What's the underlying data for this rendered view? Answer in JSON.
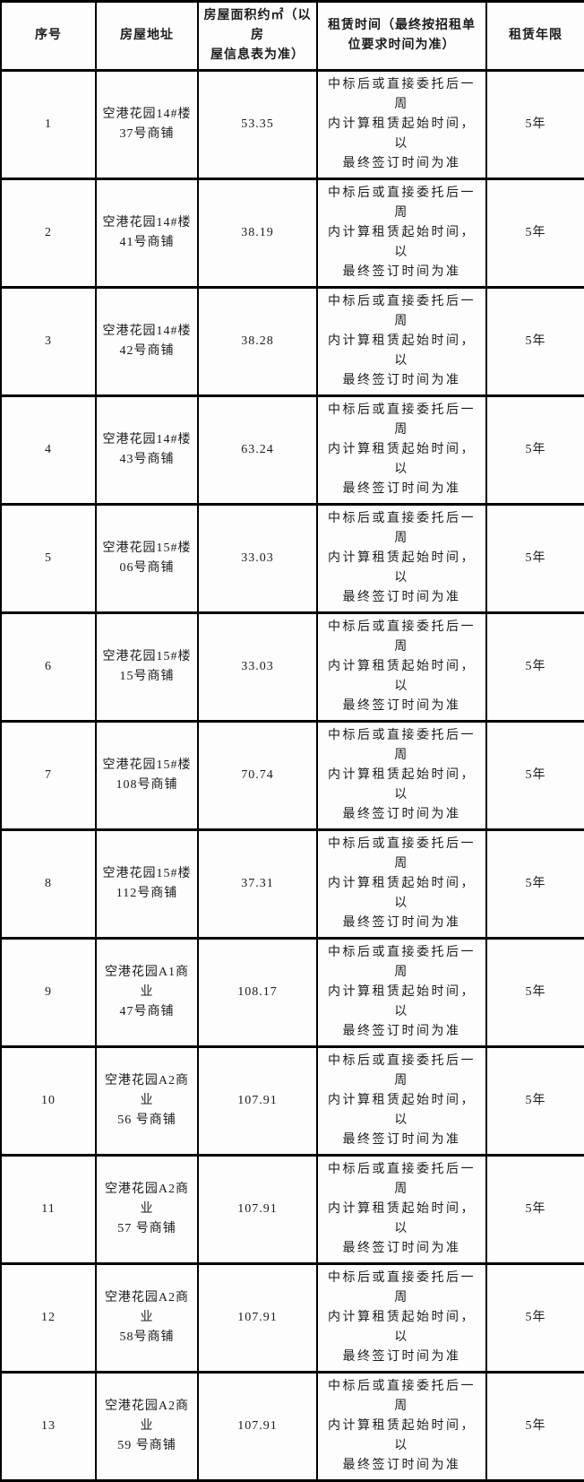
{
  "colors": {
    "border": "#000000",
    "text": "#1b1b1b",
    "background": "#fdfdfd"
  },
  "table": {
    "headers": [
      "序号",
      "房屋地址",
      "房屋面积约㎡（以房\n屋信息表为准）",
      "租赁时间（最终按招租单\n位要求时间为准）",
      "租赁年限"
    ],
    "rows": [
      {
        "no": "1",
        "address": "空港花园14#楼\n37号商铺",
        "area": "53.35",
        "lease_time": "中标后或直接委托后一周\n内计算租赁起始时间，以\n最终签订时间为准",
        "term": "5年"
      },
      {
        "no": "2",
        "address": "空港花园14#楼\n41号商铺",
        "area": "38.19",
        "lease_time": "中标后或直接委托后一周\n内计算租赁起始时间，以\n最终签订时间为准",
        "term": "5年"
      },
      {
        "no": "3",
        "address": "空港花园14#楼\n42号商铺",
        "area": "38.28",
        "lease_time": "中标后或直接委托后一周\n内计算租赁起始时间，以\n最终签订时间为准",
        "term": "5年"
      },
      {
        "no": "4",
        "address": "空港花园14#楼\n43号商铺",
        "area": "63.24",
        "lease_time": "中标后或直接委托后一周\n内计算租赁起始时间，以\n最终签订时间为准",
        "term": "5年"
      },
      {
        "no": "5",
        "address": "空港花园15#楼\n06号商铺",
        "area": "33.03",
        "lease_time": "中标后或直接委托后一周\n内计算租赁起始时间，以\n最终签订时间为准",
        "term": "5年"
      },
      {
        "no": "6",
        "address": "空港花园15#楼\n15号商铺",
        "area": "33.03",
        "lease_time": "中标后或直接委托后一周\n内计算租赁起始时间，以\n最终签订时间为准",
        "term": "5年"
      },
      {
        "no": "7",
        "address": "空港花园15#楼\n108号商铺",
        "area": "70.74",
        "lease_time": "中标后或直接委托后一周\n内计算租赁起始时间，以\n最终签订时间为准",
        "term": "5年"
      },
      {
        "no": "8",
        "address": "空港花园15#楼\n112号商铺",
        "area": "37.31",
        "lease_time": "中标后或直接委托后一周\n内计算租赁起始时间，以\n最终签订时间为准",
        "term": "5年"
      },
      {
        "no": "9",
        "address": "空港花园A1商业\n47号商铺",
        "area": "108.17",
        "lease_time": "中标后或直接委托后一周\n内计算租赁起始时间，以\n最终签订时间为准",
        "term": "5年"
      },
      {
        "no": "10",
        "address": "空港花园A2商业\n56 号商铺",
        "area": "107.91",
        "lease_time": "中标后或直接委托后一周\n内计算租赁起始时间，以\n最终签订时间为准",
        "term": "5年"
      },
      {
        "no": "11",
        "address": "空港花园A2商业\n57 号商铺",
        "area": "107.91",
        "lease_time": "中标后或直接委托后一周\n内计算租赁起始时间，以\n最终签订时间为准",
        "term": "5年"
      },
      {
        "no": "12",
        "address": "空港花园A2商业\n58号商铺",
        "area": "107.91",
        "lease_time": "中标后或直接委托后一周\n内计算租赁起始时间，以\n最终签订时间为准",
        "term": "5年"
      },
      {
        "no": "13",
        "address": "空港花园A2商业\n59 号商铺",
        "area": "107.91",
        "lease_time": "中标后或直接委托后一周\n内计算租赁起始时间，以\n最终签订时间为准",
        "term": "5年"
      }
    ]
  }
}
